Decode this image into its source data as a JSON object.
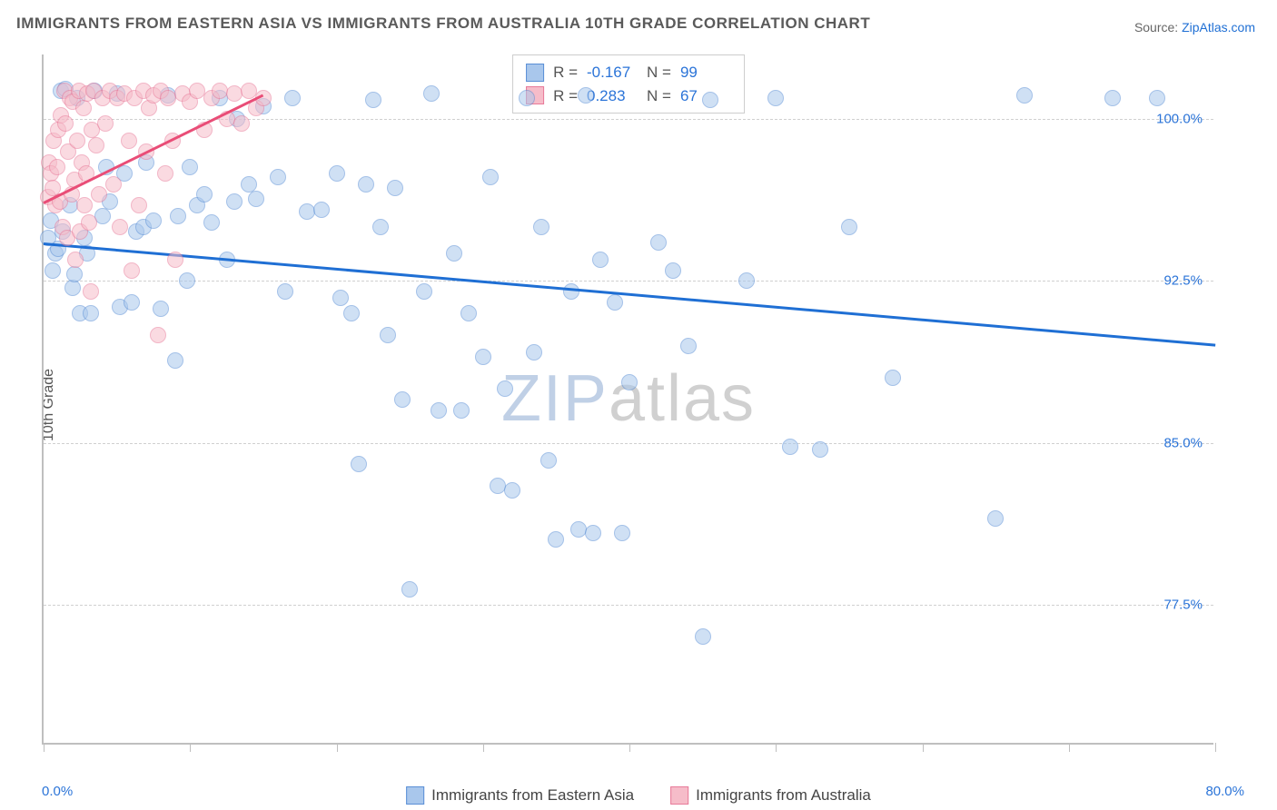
{
  "title": "IMMIGRANTS FROM EASTERN ASIA VS IMMIGRANTS FROM AUSTRALIA 10TH GRADE CORRELATION CHART",
  "source_prefix": "Source: ",
  "source_link": "ZipAtlas.com",
  "ylabel": "10th Grade",
  "watermark_a": "ZIP",
  "watermark_b": "atlas",
  "chart": {
    "type": "scatter",
    "xlim": [
      0,
      80
    ],
    "ylim": [
      71,
      103
    ],
    "x_ticks": [
      0,
      10,
      20,
      30,
      40,
      50,
      60,
      70,
      80
    ],
    "x_tick_labels": {
      "0": "0.0%",
      "80": "80.0%"
    },
    "y_gridlines": [
      77.5,
      85.0,
      92.5,
      100.0
    ],
    "y_tick_labels": [
      "77.5%",
      "85.0%",
      "92.5%",
      "100.0%"
    ],
    "background_color": "#ffffff",
    "grid_color": "#d0d0d0",
    "axis_color": "#bfbfbf",
    "tick_label_color": "#2b74d8",
    "marker_radius": 9,
    "marker_opacity": 0.55,
    "series": [
      {
        "name": "Immigrants from Eastern Asia",
        "color_fill": "#a9c7ec",
        "color_stroke": "#5a8fd6",
        "trend_color": "#1f6fd4",
        "R": "-0.167",
        "N": "99",
        "trendline": {
          "x1": 0,
          "y1": 94.3,
          "x2": 80,
          "y2": 89.6
        },
        "data": [
          [
            0.3,
            94.5
          ],
          [
            0.5,
            95.3
          ],
          [
            0.6,
            93.0
          ],
          [
            0.8,
            93.8
          ],
          [
            1.0,
            94.0
          ],
          [
            1.2,
            101.3
          ],
          [
            1.3,
            94.8
          ],
          [
            1.5,
            101.4
          ],
          [
            1.8,
            96.0
          ],
          [
            2.0,
            92.2
          ],
          [
            2.1,
            92.8
          ],
          [
            2.3,
            101.0
          ],
          [
            2.5,
            91.0
          ],
          [
            2.8,
            94.5
          ],
          [
            3.0,
            93.8
          ],
          [
            3.2,
            91.0
          ],
          [
            3.5,
            101.3
          ],
          [
            4.0,
            95.5
          ],
          [
            4.3,
            97.8
          ],
          [
            4.5,
            96.2
          ],
          [
            5.0,
            101.2
          ],
          [
            5.2,
            91.3
          ],
          [
            5.5,
            97.5
          ],
          [
            6.0,
            91.5
          ],
          [
            6.3,
            94.8
          ],
          [
            6.8,
            95.0
          ],
          [
            7.0,
            98.0
          ],
          [
            7.5,
            95.3
          ],
          [
            8.0,
            91.2
          ],
          [
            8.5,
            101.1
          ],
          [
            9.0,
            88.8
          ],
          [
            9.2,
            95.5
          ],
          [
            9.8,
            92.5
          ],
          [
            10.0,
            97.8
          ],
          [
            10.5,
            96.0
          ],
          [
            11.0,
            96.5
          ],
          [
            11.5,
            95.2
          ],
          [
            12.0,
            101.0
          ],
          [
            12.5,
            93.5
          ],
          [
            13.0,
            96.2
          ],
          [
            13.2,
            100.0
          ],
          [
            14.0,
            97.0
          ],
          [
            14.5,
            96.3
          ],
          [
            15.0,
            100.6
          ],
          [
            16.0,
            97.3
          ],
          [
            16.5,
            92.0
          ],
          [
            17.0,
            101.0
          ],
          [
            18.0,
            95.7
          ],
          [
            19.0,
            95.8
          ],
          [
            20.0,
            97.5
          ],
          [
            20.3,
            91.7
          ],
          [
            21.0,
            91.0
          ],
          [
            21.5,
            84.0
          ],
          [
            22.0,
            97.0
          ],
          [
            22.5,
            100.9
          ],
          [
            23.0,
            95.0
          ],
          [
            23.5,
            90.0
          ],
          [
            24.0,
            96.8
          ],
          [
            24.5,
            87.0
          ],
          [
            25.0,
            78.2
          ],
          [
            26.0,
            92.0
          ],
          [
            26.5,
            101.2
          ],
          [
            27.0,
            86.5
          ],
          [
            28.0,
            93.8
          ],
          [
            28.5,
            86.5
          ],
          [
            29.0,
            91.0
          ],
          [
            30.0,
            89.0
          ],
          [
            30.5,
            97.3
          ],
          [
            31.0,
            83.0
          ],
          [
            31.5,
            87.5
          ],
          [
            32.0,
            82.8
          ],
          [
            33.0,
            101.0
          ],
          [
            33.5,
            89.2
          ],
          [
            34.0,
            95.0
          ],
          [
            34.5,
            84.2
          ],
          [
            35.0,
            80.5
          ],
          [
            36.0,
            92.0
          ],
          [
            36.5,
            81.0
          ],
          [
            37.0,
            101.1
          ],
          [
            37.5,
            80.8
          ],
          [
            38.0,
            93.5
          ],
          [
            39.0,
            91.5
          ],
          [
            39.5,
            80.8
          ],
          [
            40.0,
            87.8
          ],
          [
            42.0,
            94.3
          ],
          [
            43.0,
            93.0
          ],
          [
            44.0,
            89.5
          ],
          [
            45.0,
            76.0
          ],
          [
            45.5,
            100.9
          ],
          [
            48.0,
            92.5
          ],
          [
            50.0,
            101.0
          ],
          [
            51.0,
            84.8
          ],
          [
            53.0,
            84.7
          ],
          [
            55.0,
            95.0
          ],
          [
            65.0,
            81.5
          ],
          [
            67.0,
            101.1
          ],
          [
            73.0,
            101.0
          ],
          [
            76.0,
            101.0
          ],
          [
            58.0,
            88.0
          ]
        ]
      },
      {
        "name": "Immigrants from Australia",
        "color_fill": "#f6bcc9",
        "color_stroke": "#e87a99",
        "trend_color": "#e94d77",
        "R": "0.283",
        "N": "67",
        "trendline": {
          "x1": 0,
          "y1": 96.2,
          "x2": 15,
          "y2": 101.2
        },
        "data": [
          [
            0.3,
            96.4
          ],
          [
            0.4,
            98.0
          ],
          [
            0.5,
            97.5
          ],
          [
            0.6,
            96.8
          ],
          [
            0.7,
            99.0
          ],
          [
            0.8,
            96.0
          ],
          [
            0.9,
            97.8
          ],
          [
            1.0,
            99.5
          ],
          [
            1.1,
            96.2
          ],
          [
            1.2,
            100.2
          ],
          [
            1.3,
            95.0
          ],
          [
            1.4,
            101.3
          ],
          [
            1.5,
            99.8
          ],
          [
            1.6,
            94.5
          ],
          [
            1.7,
            98.5
          ],
          [
            1.8,
            101.0
          ],
          [
            1.9,
            96.5
          ],
          [
            2.0,
            100.8
          ],
          [
            2.1,
            97.2
          ],
          [
            2.2,
            93.5
          ],
          [
            2.3,
            99.0
          ],
          [
            2.4,
            101.3
          ],
          [
            2.5,
            94.8
          ],
          [
            2.6,
            98.0
          ],
          [
            2.7,
            100.5
          ],
          [
            2.8,
            96.0
          ],
          [
            2.9,
            97.5
          ],
          [
            3.0,
            101.2
          ],
          [
            3.1,
            95.2
          ],
          [
            3.2,
            92.0
          ],
          [
            3.3,
            99.5
          ],
          [
            3.4,
            101.3
          ],
          [
            3.6,
            98.8
          ],
          [
            3.8,
            96.5
          ],
          [
            4.0,
            101.0
          ],
          [
            4.2,
            99.8
          ],
          [
            4.5,
            101.3
          ],
          [
            4.8,
            97.0
          ],
          [
            5.0,
            101.0
          ],
          [
            5.2,
            95.0
          ],
          [
            5.5,
            101.2
          ],
          [
            5.8,
            99.0
          ],
          [
            6.0,
            93.0
          ],
          [
            6.2,
            101.0
          ],
          [
            6.5,
            96.0
          ],
          [
            6.8,
            101.3
          ],
          [
            7.0,
            98.5
          ],
          [
            7.2,
            100.5
          ],
          [
            7.5,
            101.1
          ],
          [
            7.8,
            90.0
          ],
          [
            8.0,
            101.3
          ],
          [
            8.3,
            97.5
          ],
          [
            8.5,
            101.0
          ],
          [
            8.8,
            99.0
          ],
          [
            9.0,
            93.5
          ],
          [
            9.5,
            101.2
          ],
          [
            10.0,
            100.8
          ],
          [
            10.5,
            101.3
          ],
          [
            11.0,
            99.5
          ],
          [
            11.5,
            101.0
          ],
          [
            12.0,
            101.3
          ],
          [
            12.5,
            100.0
          ],
          [
            13.0,
            101.2
          ],
          [
            13.5,
            99.8
          ],
          [
            14.0,
            101.3
          ],
          [
            14.5,
            100.5
          ],
          [
            15.0,
            101.0
          ]
        ]
      }
    ]
  },
  "bottom_legend": [
    {
      "label": "Immigrants from Eastern Asia",
      "fill": "#a9c7ec",
      "stroke": "#5a8fd6"
    },
    {
      "label": "Immigrants from Australia",
      "fill": "#f6bcc9",
      "stroke": "#e87a99"
    }
  ],
  "stats_labels": {
    "R": "R =",
    "N": "N ="
  }
}
